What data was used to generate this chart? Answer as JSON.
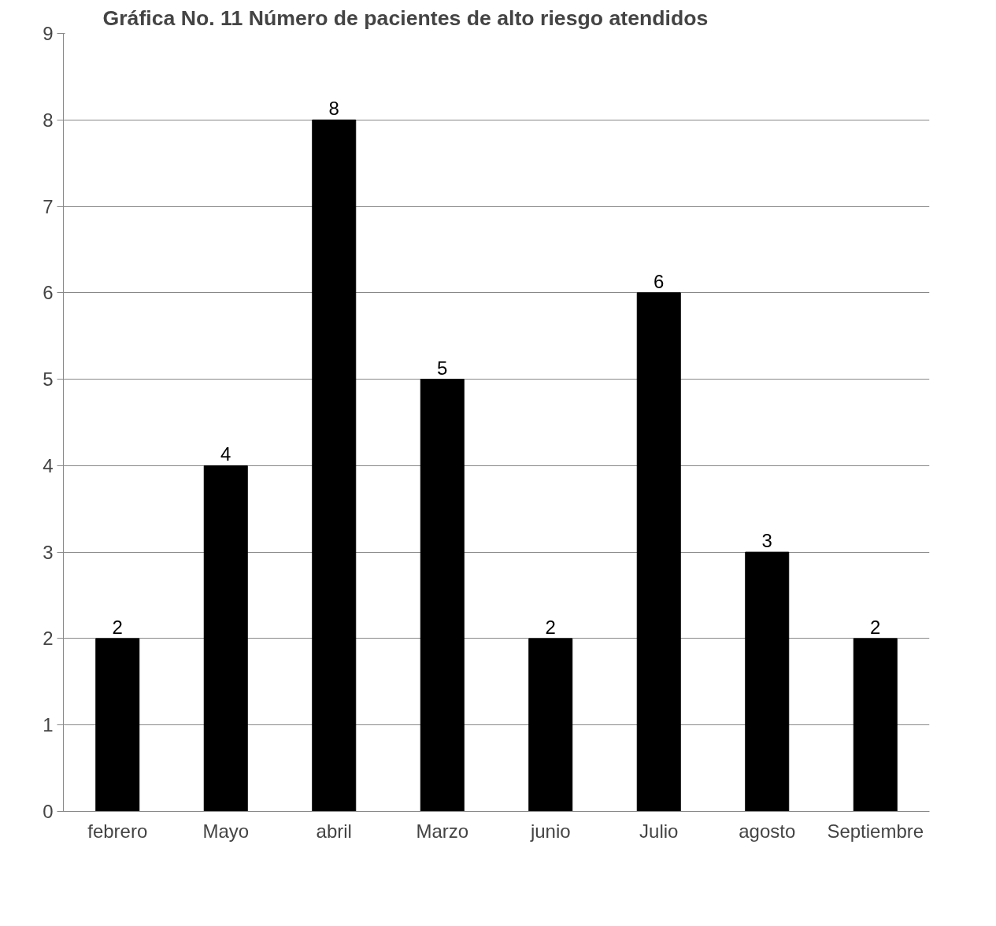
{
  "chart_data": {
    "type": "bar",
    "title": "Gráfica No. 11 Número de pacientes de alto riesgo atendidos",
    "categories": [
      "febrero",
      "Mayo",
      "abril",
      "Marzo",
      "junio",
      "Julio",
      "agosto",
      "Septiembre"
    ],
    "values": [
      2,
      4,
      8,
      5,
      2,
      6,
      3,
      2
    ],
    "color": "#000000",
    "ylim": [
      0,
      9
    ],
    "yticks": [
      0,
      1,
      2,
      3,
      4,
      5,
      6,
      7,
      8,
      9
    ],
    "grid": "y",
    "data_labels": true
  }
}
